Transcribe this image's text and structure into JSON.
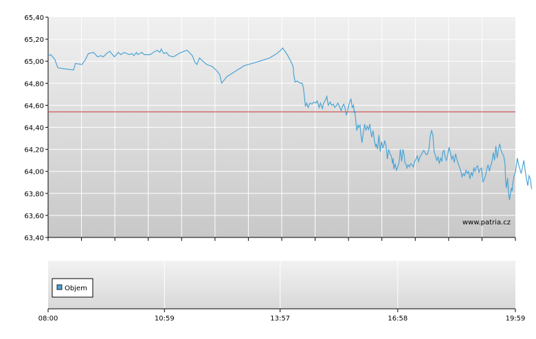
{
  "chart_data": [
    {
      "type": "line",
      "title": "",
      "xlabel": "",
      "ylabel": "",
      "ylim": [
        63.4,
        65.4
      ],
      "y_ticks": [
        "65,40",
        "65,20",
        "65,00",
        "64,80",
        "64,60",
        "64,40",
        "64,20",
        "64,00",
        "63,80",
        "63,60",
        "63,40"
      ],
      "y_tick_values": [
        65.4,
        65.2,
        65.0,
        64.8,
        64.6,
        64.4,
        64.2,
        64.0,
        63.8,
        63.6,
        63.4
      ],
      "x_range_minutes": [
        480,
        1199
      ],
      "reference_line": {
        "value": 64.54,
        "color": "#cc3333"
      },
      "watermark": "www.patria.cz",
      "grid": true,
      "series": [
        {
          "color": "#4aa3d4",
          "points": [
            [
              480,
              65.05
            ],
            [
              484,
              65.06
            ],
            [
              490,
              65.02
            ],
            [
              495,
              64.94
            ],
            [
              506,
              64.93
            ],
            [
              519,
              64.92
            ],
            [
              522,
              64.98
            ],
            [
              532,
              64.97
            ],
            [
              537,
              65.01
            ],
            [
              542,
              65.07
            ],
            [
              550,
              65.08
            ],
            [
              556,
              65.04
            ],
            [
              561,
              65.05
            ],
            [
              565,
              65.04
            ],
            [
              570,
              65.07
            ],
            [
              575,
              65.09
            ],
            [
              582,
              65.04
            ],
            [
              588,
              65.08
            ],
            [
              592,
              65.06
            ],
            [
              597,
              65.08
            ],
            [
              601,
              65.07
            ],
            [
              605,
              65.06
            ],
            [
              609,
              65.07
            ],
            [
              612,
              65.05
            ],
            [
              616,
              65.08
            ],
            [
              618,
              65.06
            ],
            [
              624,
              65.08
            ],
            [
              628,
              65.06
            ],
            [
              633,
              65.06
            ],
            [
              637,
              65.06
            ],
            [
              642,
              65.08
            ],
            [
              648,
              65.1
            ],
            [
              652,
              65.08
            ],
            [
              654,
              65.11
            ],
            [
              658,
              65.07
            ],
            [
              662,
              65.08
            ],
            [
              666,
              65.05
            ],
            [
              672,
              65.04
            ],
            [
              676,
              65.05
            ],
            [
              681,
              65.07
            ],
            [
              689,
              65.09
            ],
            [
              694,
              65.1
            ],
            [
              702,
              65.05
            ],
            [
              706,
              64.99
            ],
            [
              709,
              64.97
            ],
            [
              713,
              65.03
            ],
            [
              718,
              65.0
            ],
            [
              724,
              64.97
            ],
            [
              733,
              64.95
            ],
            [
              740,
              64.91
            ],
            [
              744,
              64.88
            ],
            [
              747,
              64.8
            ],
            [
              755,
              64.86
            ],
            [
              782,
              64.96
            ],
            [
              800,
              64.99
            ],
            [
              821,
              65.03
            ],
            [
              832,
              65.07
            ],
            [
              838,
              65.1
            ],
            [
              841,
              65.12
            ],
            [
              848,
              65.06
            ],
            [
              855,
              64.98
            ],
            [
              857,
              64.95
            ],
            [
              858,
              64.88
            ],
            [
              860,
              64.81
            ],
            [
              863,
              64.82
            ],
            [
              868,
              64.8
            ],
            [
              871,
              64.8
            ],
            [
              873,
              64.75
            ],
            [
              874,
              64.7
            ],
            [
              876,
              64.59
            ],
            [
              878,
              64.62
            ],
            [
              880,
              64.58
            ],
            [
              883,
              64.62
            ],
            [
              886,
              64.61
            ],
            [
              889,
              64.63
            ],
            [
              892,
              64.62
            ],
            [
              894,
              64.64
            ],
            [
              897,
              64.58
            ],
            [
              899,
              64.62
            ],
            [
              902,
              64.57
            ],
            [
              904,
              64.62
            ],
            [
              907,
              64.65
            ],
            [
              909,
              64.68
            ],
            [
              911,
              64.6
            ],
            [
              914,
              64.63
            ],
            [
              916,
              64.6
            ],
            [
              919,
              64.61
            ],
            [
              921,
              64.58
            ],
            [
              924,
              64.6
            ],
            [
              926,
              64.62
            ],
            [
              929,
              64.58
            ],
            [
              931,
              64.55
            ],
            [
              933,
              64.59
            ],
            [
              935,
              64.61
            ],
            [
              937,
              64.57
            ],
            [
              939,
              64.51
            ],
            [
              941,
              64.55
            ],
            [
              943,
              64.61
            ],
            [
              946,
              64.66
            ],
            [
              948,
              64.58
            ],
            [
              950,
              64.6
            ],
            [
              951,
              64.53
            ],
            [
              952,
              64.55
            ],
            [
              953,
              64.49
            ],
            [
              955,
              64.37
            ],
            [
              957,
              64.42
            ],
            [
              958,
              64.4
            ],
            [
              960,
              64.42
            ],
            [
              961,
              64.35
            ],
            [
              963,
              64.26
            ],
            [
              965,
              64.35
            ],
            [
              967,
              64.43
            ],
            [
              969,
              64.37
            ],
            [
              971,
              64.41
            ],
            [
              973,
              64.38
            ],
            [
              975,
              64.43
            ],
            [
              977,
              64.34
            ],
            [
              978,
              64.31
            ],
            [
              980,
              64.37
            ],
            [
              982,
              64.28
            ],
            [
              984,
              64.22
            ],
            [
              985,
              64.25
            ],
            [
              987,
              64.2
            ],
            [
              989,
              64.33
            ],
            [
              991,
              64.18
            ],
            [
              993,
              64.27
            ],
            [
              995,
              64.21
            ],
            [
              997,
              64.25
            ],
            [
              998,
              64.28
            ],
            [
              1000,
              64.23
            ],
            [
              1002,
              64.11
            ],
            [
              1004,
              64.2
            ],
            [
              1006,
              64.16
            ],
            [
              1008,
              64.14
            ],
            [
              1010,
              64.07
            ],
            [
              1011,
              64.12
            ],
            [
              1012,
              64.02
            ],
            [
              1014,
              64.07
            ],
            [
              1016,
              64.01
            ],
            [
              1018,
              64.04
            ],
            [
              1020,
              64.08
            ],
            [
              1022,
              64.2
            ],
            [
              1024,
              64.09
            ],
            [
              1026,
              64.2
            ],
            [
              1028,
              64.14
            ],
            [
              1029,
              64.08
            ],
            [
              1031,
              64.06
            ],
            [
              1032,
              64.03
            ],
            [
              1034,
              64.06
            ],
            [
              1036,
              64.04
            ],
            [
              1038,
              64.07
            ],
            [
              1040,
              64.06
            ],
            [
              1042,
              64.04
            ],
            [
              1044,
              64.09
            ],
            [
              1046,
              64.11
            ],
            [
              1048,
              64.14
            ],
            [
              1050,
              64.09
            ],
            [
              1052,
              64.13
            ],
            [
              1054,
              64.15
            ],
            [
              1056,
              64.17
            ],
            [
              1058,
              64.19
            ],
            [
              1060,
              64.17
            ],
            [
              1062,
              64.15
            ],
            [
              1064,
              64.16
            ],
            [
              1066,
              64.2
            ],
            [
              1068,
              64.32
            ],
            [
              1070,
              64.37
            ],
            [
              1072,
              64.33
            ],
            [
              1074,
              64.18
            ],
            [
              1076,
              64.14
            ],
            [
              1078,
              64.1
            ],
            [
              1080,
              64.13
            ],
            [
              1082,
              64.07
            ],
            [
              1084,
              64.12
            ],
            [
              1086,
              64.09
            ],
            [
              1087,
              64.17
            ],
            [
              1089,
              64.19
            ],
            [
              1091,
              64.13
            ],
            [
              1093,
              64.1
            ],
            [
              1095,
              64.15
            ],
            [
              1097,
              64.22
            ],
            [
              1099,
              64.17
            ],
            [
              1101,
              64.11
            ],
            [
              1103,
              64.14
            ],
            [
              1105,
              64.08
            ],
            [
              1107,
              64.16
            ],
            [
              1109,
              64.11
            ],
            [
              1111,
              64.07
            ],
            [
              1113,
              64.04
            ],
            [
              1115,
              64.0
            ],
            [
              1117,
              63.95
            ],
            [
              1119,
              63.98
            ],
            [
              1121,
              63.96
            ],
            [
              1123,
              64.01
            ],
            [
              1125,
              63.98
            ],
            [
              1127,
              64.0
            ],
            [
              1129,
              63.93
            ],
            [
              1131,
              63.99
            ],
            [
              1133,
              63.96
            ],
            [
              1135,
              64.03
            ],
            [
              1137,
              64.0
            ],
            [
              1139,
              64.04
            ],
            [
              1141,
              64.05
            ],
            [
              1143,
              63.99
            ],
            [
              1145,
              64.02
            ],
            [
              1147,
              64.03
            ],
            [
              1149,
              63.9
            ],
            [
              1151,
              63.93
            ],
            [
              1153,
              63.96
            ],
            [
              1155,
              64.02
            ],
            [
              1157,
              64.06
            ],
            [
              1159,
              64.0
            ],
            [
              1161,
              64.05
            ],
            [
              1163,
              64.09
            ],
            [
              1165,
              64.17
            ],
            [
              1167,
              64.1
            ],
            [
              1169,
              64.23
            ],
            [
              1171,
              64.12
            ],
            [
              1173,
              64.2
            ],
            [
              1175,
              64.25
            ],
            [
              1177,
              64.19
            ],
            [
              1179,
              64.16
            ],
            [
              1181,
              64.14
            ],
            [
              1183,
              64.07
            ],
            [
              1184,
              63.91
            ],
            [
              1185,
              63.85
            ],
            [
              1187,
              63.94
            ],
            [
              1188,
              63.84
            ],
            [
              1189,
              63.78
            ],
            [
              1190,
              63.74
            ],
            [
              1191,
              63.78
            ],
            [
              1193,
              63.85
            ],
            [
              1194,
              63.82
            ],
            [
              1195,
              63.89
            ],
            [
              1197,
              63.96
            ],
            [
              1199,
              63.99
            ],
            [
              1200,
              64.03
            ],
            [
              1202,
              64.12
            ],
            [
              1204,
              64.06
            ],
            [
              1206,
              64.02
            ],
            [
              1208,
              63.98
            ],
            [
              1210,
              64.04
            ],
            [
              1212,
              64.1
            ],
            [
              1214,
              64.01
            ],
            [
              1216,
              63.93
            ],
            [
              1218,
              63.87
            ],
            [
              1220,
              63.96
            ],
            [
              1222,
              63.93
            ],
            [
              1224,
              63.84
            ]
          ]
        }
      ]
    },
    {
      "type": "bar",
      "title": "",
      "legend": [
        "Objem"
      ],
      "series": [
        {
          "name": "Objem",
          "color": "#4aa3d4",
          "values": []
        }
      ],
      "x_ticks": [
        "08:00",
        "10:59",
        "13:57",
        "16:58",
        "19:59"
      ],
      "x_tick_minutes": [
        480,
        659,
        837,
        1018,
        1199
      ],
      "grid": true
    }
  ]
}
